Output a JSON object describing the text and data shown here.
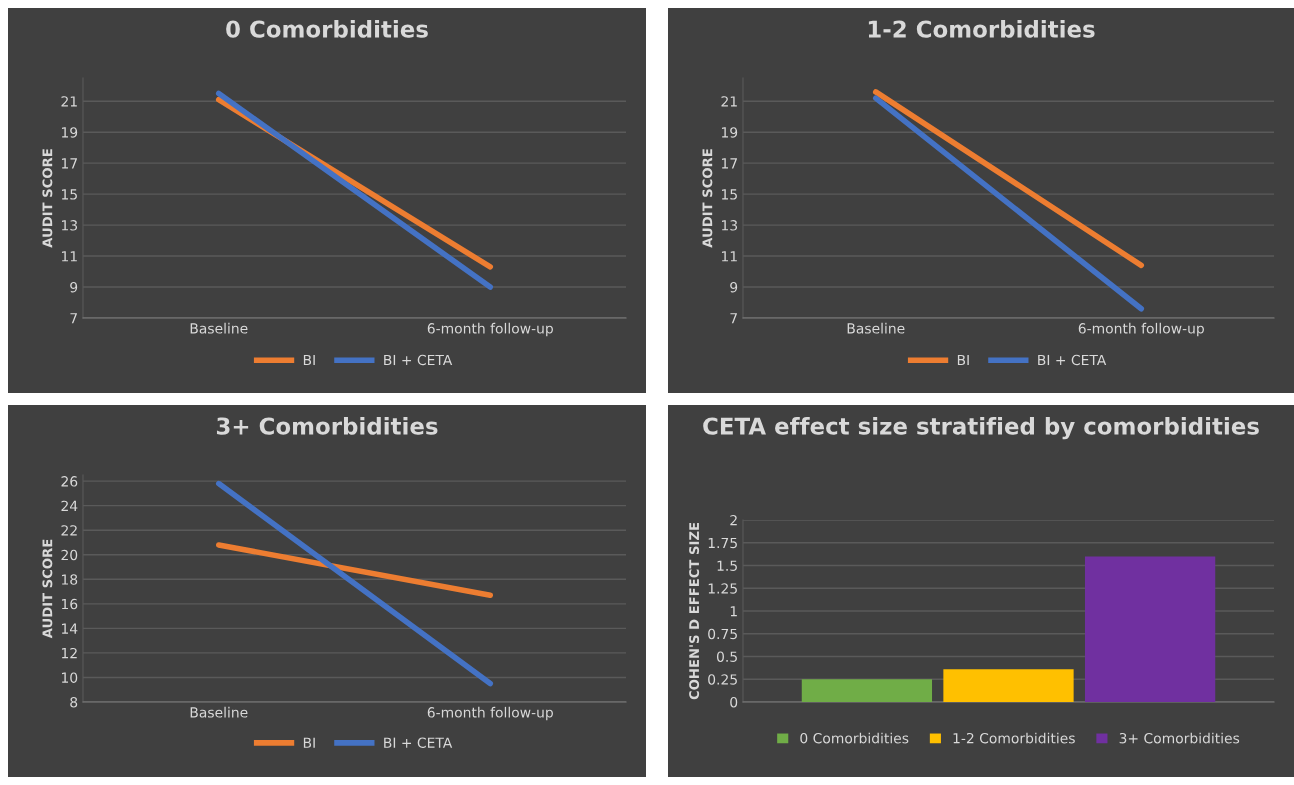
{
  "chart_data": [
    {
      "type": "line",
      "title": "0 Comorbidities",
      "ylabel": "AUDIT SCORE",
      "categories": [
        "Baseline",
        "6-month follow-up"
      ],
      "ylim": [
        7,
        22.5
      ],
      "yticks": [
        7,
        9,
        11,
        13,
        15,
        17,
        19,
        21
      ],
      "grid": "y",
      "legend": "bottom",
      "series": [
        {
          "name": "BI",
          "color": "#ed7d31",
          "values": [
            21.1,
            10.3
          ]
        },
        {
          "name": "BI + CETA",
          "color": "#4472c4",
          "values": [
            21.5,
            9.0
          ]
        }
      ]
    },
    {
      "type": "line",
      "title": "1-2 Comorbidities",
      "ylabel": "AUDIT SCORE",
      "categories": [
        "Baseline",
        "6-month follow-up"
      ],
      "ylim": [
        7,
        22.5
      ],
      "yticks": [
        7,
        9,
        11,
        13,
        15,
        17,
        19,
        21
      ],
      "grid": "y",
      "legend": "bottom",
      "series": [
        {
          "name": "BI",
          "color": "#ed7d31",
          "values": [
            21.6,
            10.4
          ]
        },
        {
          "name": "BI + CETA",
          "color": "#4472c4",
          "values": [
            21.2,
            7.6
          ]
        }
      ]
    },
    {
      "type": "line",
      "title": "3+ Comorbidities",
      "ylabel": "AUDIT SCORE",
      "categories": [
        "Baseline",
        "6-month follow-up"
      ],
      "ylim": [
        8,
        26.5
      ],
      "yticks": [
        8,
        10,
        12,
        14,
        16,
        18,
        20,
        22,
        24,
        26
      ],
      "grid": "y",
      "legend": "bottom",
      "series": [
        {
          "name": "BI",
          "color": "#ed7d31",
          "values": [
            20.8,
            16.7
          ]
        },
        {
          "name": "BI + CETA",
          "color": "#4472c4",
          "values": [
            25.8,
            9.5
          ]
        }
      ]
    },
    {
      "type": "bar",
      "title": "CETA effect size stratified by comorbidities",
      "ylabel": "COHEN'S D EFFECT SIZE",
      "categories": [
        null
      ],
      "ylim": [
        0,
        2
      ],
      "yticks": [
        0,
        0.25,
        0.5,
        0.75,
        1,
        1.25,
        1.5,
        1.75,
        2
      ],
      "grid": "y",
      "legend": "bottom",
      "series": [
        {
          "name": "0 Comorbidities",
          "color": "#70ad47",
          "values": [
            0.25
          ]
        },
        {
          "name": "1-2 Comorbidities",
          "color": "#ffc000",
          "values": [
            0.36
          ]
        },
        {
          "name": "3+ Comorbidities",
          "color": "#7030a0",
          "values": [
            1.6
          ]
        }
      ]
    }
  ]
}
